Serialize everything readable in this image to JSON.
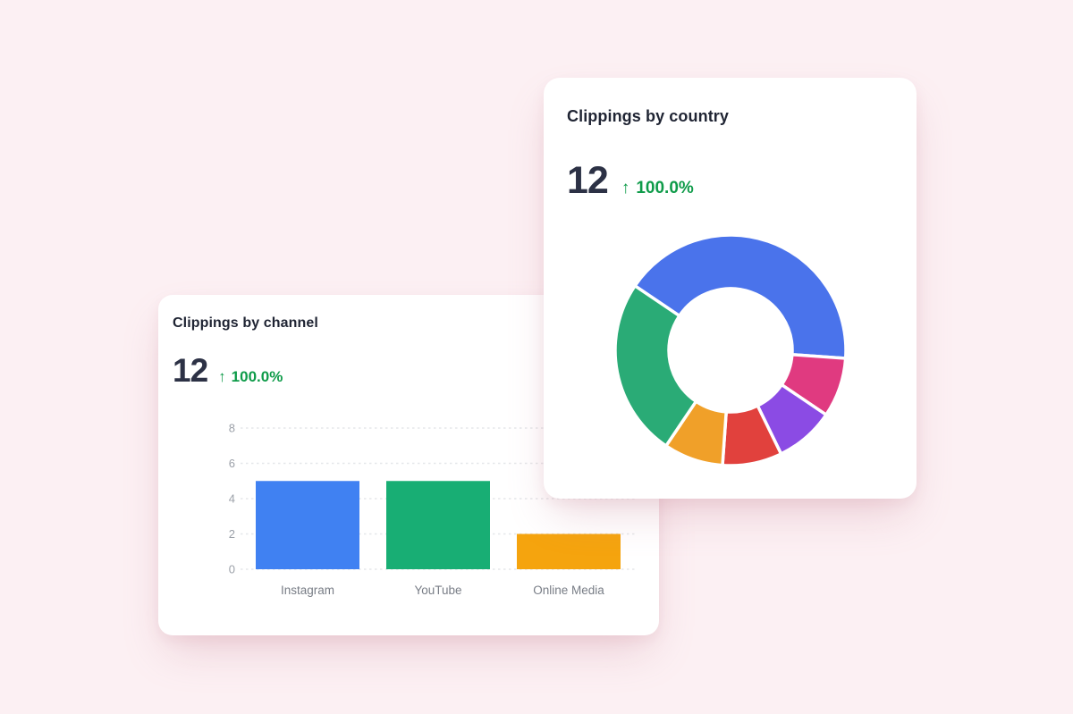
{
  "page": {
    "background": "#FCF0F3"
  },
  "cards": {
    "channel": {
      "title": "Clippings by channel",
      "metric_value": "12",
      "change_arrow": "↑",
      "change_value": "100.0%"
    },
    "country": {
      "title": "Clippings by country",
      "metric_value": "12",
      "change_arrow": "↑",
      "change_value": "100.0%"
    }
  },
  "colors": {
    "title_text": "#1F2433",
    "metric_text": "#2C3145",
    "change_green": "#0E9B49",
    "gridline": "#E5E7EA",
    "y_tick_text": "#9BA0A8",
    "x_label_text": "#787D86"
  },
  "chart_data": [
    {
      "id": "clippings-by-channel",
      "type": "bar",
      "title": "Clippings by channel",
      "categories": [
        "Instagram",
        "YouTube",
        "Online Media"
      ],
      "values": [
        5,
        5,
        2
      ],
      "bar_colors": [
        "#4081F2",
        "#18AE74",
        "#F5A40E"
      ],
      "y_ticks": [
        0,
        2,
        4,
        6,
        8
      ],
      "ylim": [
        0,
        8
      ],
      "xlabel": "",
      "ylabel": "",
      "grid": "horizontal-dashed",
      "legend": "none"
    },
    {
      "id": "clippings-by-country",
      "type": "donut",
      "title": "Clippings by country",
      "total": 12,
      "segments": [
        {
          "value": 5,
          "color": "#4A73EB"
        },
        {
          "value": 1,
          "color": "#E03A80"
        },
        {
          "value": 1,
          "color": "#8B4BE4"
        },
        {
          "value": 1,
          "color": "#E1413D"
        },
        {
          "value": 1,
          "color": "#F0A029"
        },
        {
          "value": 3,
          "color": "#2AAB76"
        }
      ],
      "start_angle_deg": -56,
      "inner_radius_ratio": 0.535,
      "legend": "none"
    }
  ]
}
